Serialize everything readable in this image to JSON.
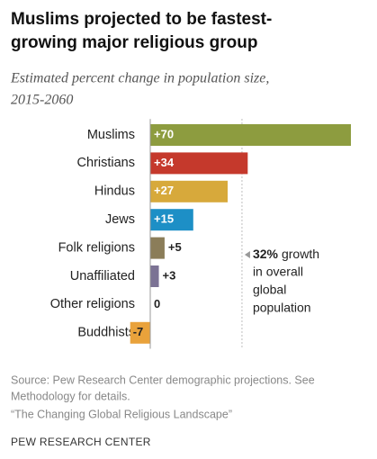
{
  "chart_data": {
    "type": "bar",
    "orientation": "horizontal",
    "title": [
      "Muslims projected to be fastest-",
      "growing major religious group"
    ],
    "subtitle": [
      "Estimated percent change in population size,",
      "2015-2060"
    ],
    "categories": [
      "Muslims",
      "Christians",
      "Hindus",
      "Jews",
      "Folk religions",
      "Unaffiliated",
      "Other religions",
      "Buddhists"
    ],
    "values": [
      70,
      34,
      27,
      15,
      5,
      3,
      0,
      -7
    ],
    "value_labels": [
      "+70",
      "+34",
      "+27",
      "+15",
      "+5",
      "+3",
      "0",
      "-7"
    ],
    "colors": [
      "#8d9c3f",
      "#c5392c",
      "#d7a93b",
      "#1d8fc6",
      "#8b7d59",
      "#7b7294",
      "#999999",
      "#e9a23b"
    ],
    "xlim": [
      -7,
      70
    ],
    "reference": {
      "value": 32,
      "label": "32%",
      "text_lines": [
        "growth",
        "in overall",
        "global",
        "population"
      ]
    },
    "source": [
      "Source: Pew Research Center demographic projections. See",
      "Methodology for details.",
      "“The Changing Global Religious Landscape”"
    ],
    "footer": "PEW RESEARCH CENTER"
  }
}
